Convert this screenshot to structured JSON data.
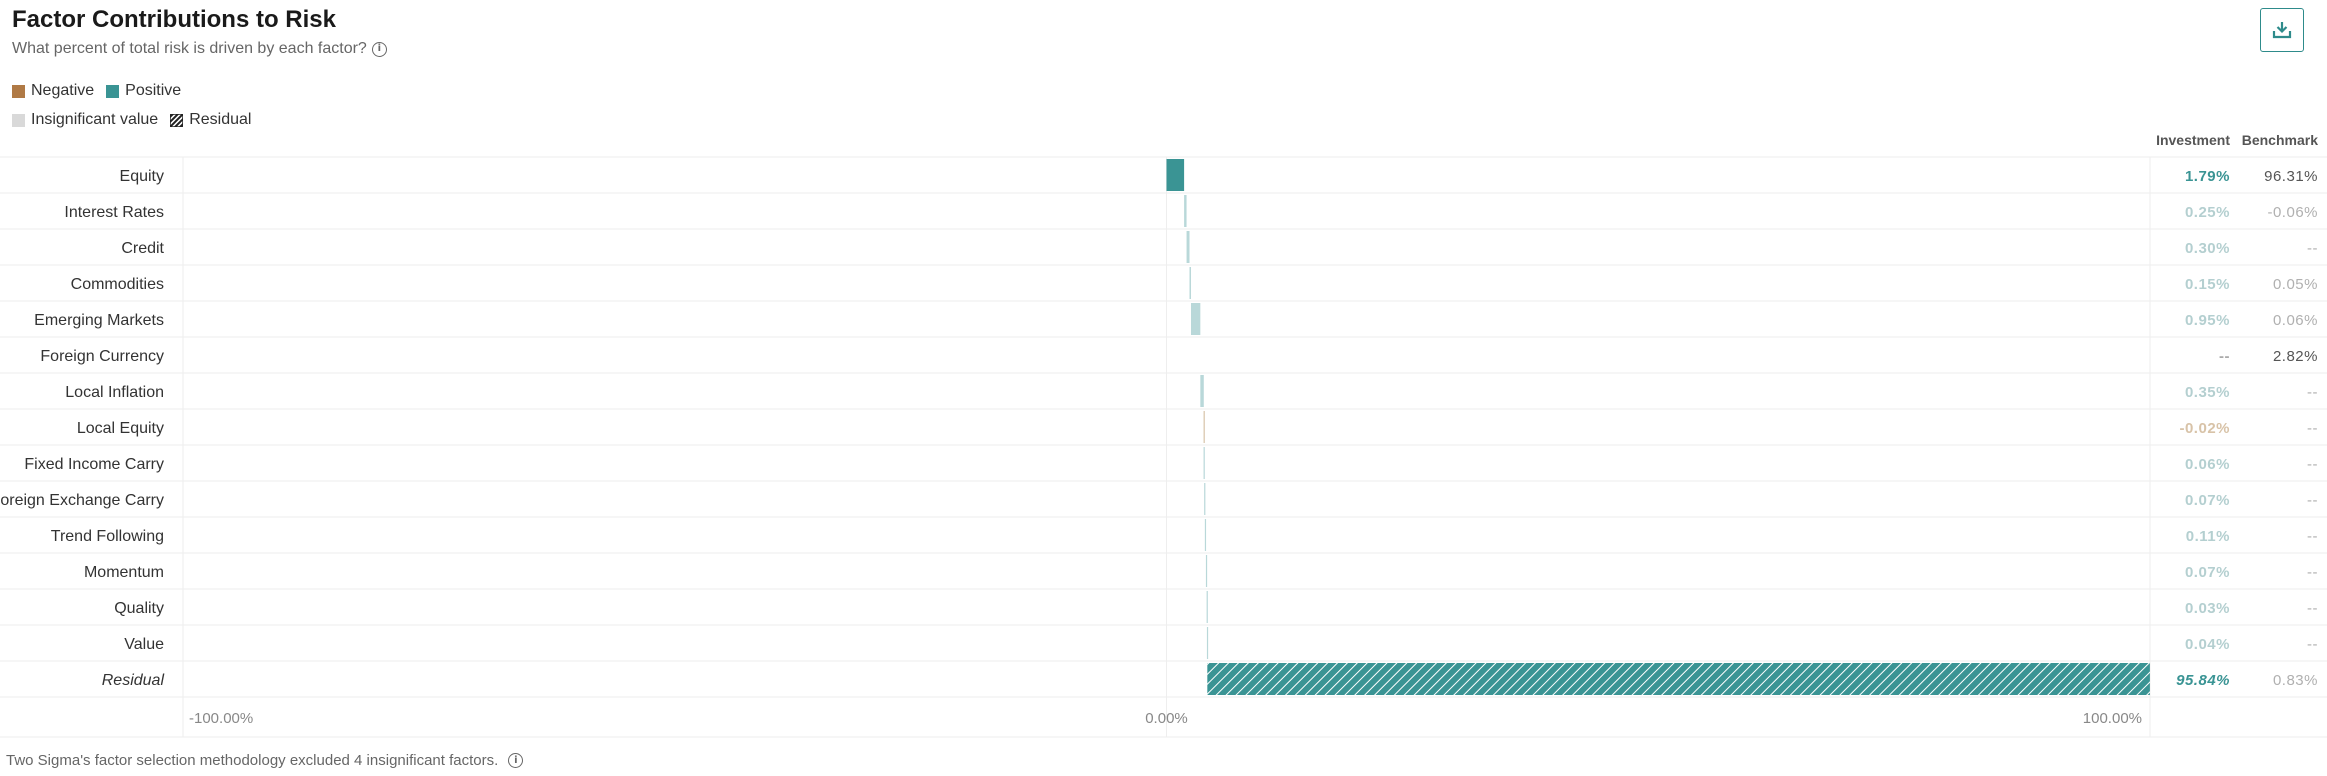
{
  "header": {
    "title": "Factor Contributions to Risk",
    "subtitle": "What percent of total risk is driven by each factor?",
    "info_icon": "info-circle-icon",
    "download_icon": "download-icon"
  },
  "legend": {
    "items": [
      {
        "label": "Negative",
        "color": "#b07a45",
        "pattern": "solid"
      },
      {
        "label": "Positive",
        "color": "#3a9494",
        "pattern": "solid"
      },
      {
        "label": "Insignificant value",
        "color": "#d9d9d9",
        "pattern": "solid"
      },
      {
        "label": "Residual",
        "color": "#222222",
        "pattern": "hatch"
      }
    ]
  },
  "table": {
    "col_investment": "Investment",
    "col_benchmark": "Benchmark"
  },
  "colors": {
    "positive": "#3a9494",
    "insignificant_bar": "#b9d8d9",
    "insignificant_text": "#b4cfd0",
    "negative_insignificant_text": "#d8c3a8",
    "benchmark_text": "#555555",
    "benchmark_faint": "#b0b0b0",
    "grid": "#eeeeee"
  },
  "chart_data": {
    "type": "bar",
    "orientation": "horizontal",
    "title": "Factor Contributions to Risk",
    "subtitle": "What percent of total risk is driven by each factor?",
    "xlim": [
      -100,
      100
    ],
    "x_ticks": [
      -100,
      0,
      100
    ],
    "x_tick_labels": [
      "-100.00%",
      "0.00%",
      "100.00%"
    ],
    "bars_stacked_from_zero": true,
    "categories": [
      "Equity",
      "Interest Rates",
      "Credit",
      "Commodities",
      "Emerging Markets",
      "Foreign Currency",
      "Local Inflation",
      "Local Equity",
      "Fixed Income Carry",
      "Foreign Exchange Carry",
      "Trend Following",
      "Momentum",
      "Quality",
      "Value",
      "Residual"
    ],
    "series": [
      {
        "name": "Investment",
        "values": [
          1.79,
          0.25,
          0.3,
          0.15,
          0.95,
          null,
          0.35,
          -0.02,
          0.06,
          0.07,
          0.11,
          0.07,
          0.03,
          0.04,
          95.84
        ],
        "labels": [
          "1.79%",
          "0.25%",
          "0.30%",
          "0.15%",
          "0.95%",
          "--",
          "0.35%",
          "-0.02%",
          "0.06%",
          "0.07%",
          "0.11%",
          "0.07%",
          "0.03%",
          "0.04%",
          "95.84%"
        ],
        "significance": [
          "positive",
          "insignificant",
          "insignificant",
          "insignificant",
          "insignificant",
          "none",
          "insignificant",
          "negative-insignificant",
          "insignificant",
          "insignificant",
          "insignificant",
          "insignificant",
          "insignificant",
          "insignificant",
          "residual"
        ]
      },
      {
        "name": "Benchmark",
        "labels": [
          "96.31%",
          "-0.06%",
          "--",
          "0.05%",
          "0.06%",
          "2.82%",
          "--",
          "--",
          "--",
          "--",
          "--",
          "--",
          "--",
          "--",
          "0.83%"
        ],
        "significance": [
          "significant",
          "insignificant",
          "none",
          "insignificant",
          "insignificant",
          "significant",
          "none",
          "none",
          "none",
          "none",
          "none",
          "none",
          "none",
          "none",
          "insignificant"
        ]
      }
    ],
    "residual_category": "Residual",
    "footnote": "Two Sigma's factor selection methodology excluded 4 insignificant factors."
  }
}
